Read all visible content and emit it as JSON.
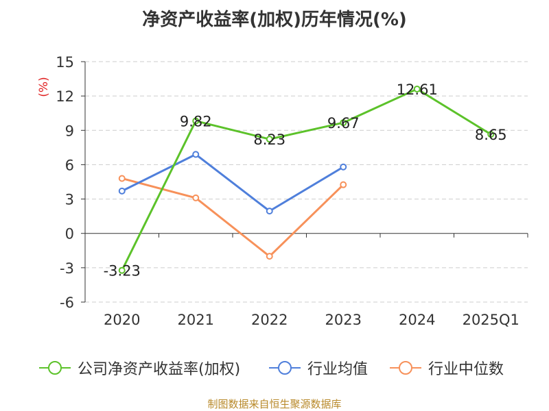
{
  "title": "净资产收益率(加权)历年情况(%)",
  "source": "制图数据来自恒生聚源数据库",
  "chart_data": {
    "type": "line",
    "title": "净资产收益率(加权)历年情况(%)",
    "ylabel": "(%)",
    "xlabel": "",
    "categories": [
      "2020",
      "2021",
      "2022",
      "2023",
      "2024",
      "2025Q1"
    ],
    "ylim": [
      -6,
      15
    ],
    "yticks": [
      15,
      12,
      9,
      6,
      3,
      0,
      -3,
      -6
    ],
    "grid": true,
    "legend_position": "bottom",
    "series": [
      {
        "name": "公司净资产收益率(加权)",
        "color": "#5cc22a",
        "values": [
          -3.23,
          9.82,
          8.23,
          9.67,
          12.61,
          8.65
        ],
        "labels": [
          "-3.23",
          "9.82",
          "8.23",
          "9.67",
          "12.61",
          "8.65"
        ]
      },
      {
        "name": "行业均值",
        "color": "#4f7fdb",
        "values": [
          3.7,
          6.9,
          1.95,
          5.8,
          null,
          null
        ]
      },
      {
        "name": "行业中位数",
        "color": "#f7915a",
        "values": [
          4.8,
          3.1,
          -2.0,
          4.25,
          null,
          null
        ]
      }
    ]
  }
}
